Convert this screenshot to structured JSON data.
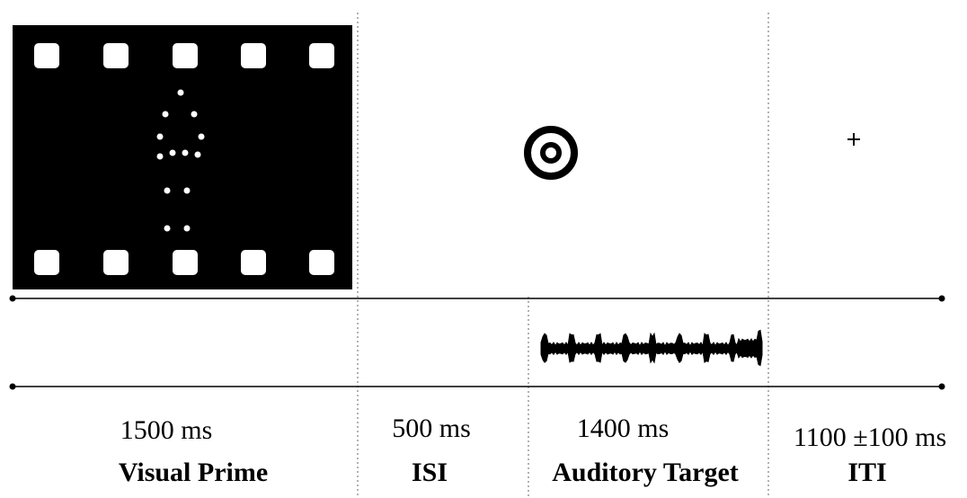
{
  "phases": [
    {
      "duration": "1500 ms",
      "label": "Visual Prime"
    },
    {
      "duration": "500 ms",
      "label": "ISI"
    },
    {
      "duration": "1400 ms",
      "label": "Auditory Target"
    },
    {
      "duration": "1100 ±100 ms",
      "label": "ITI"
    }
  ]
}
